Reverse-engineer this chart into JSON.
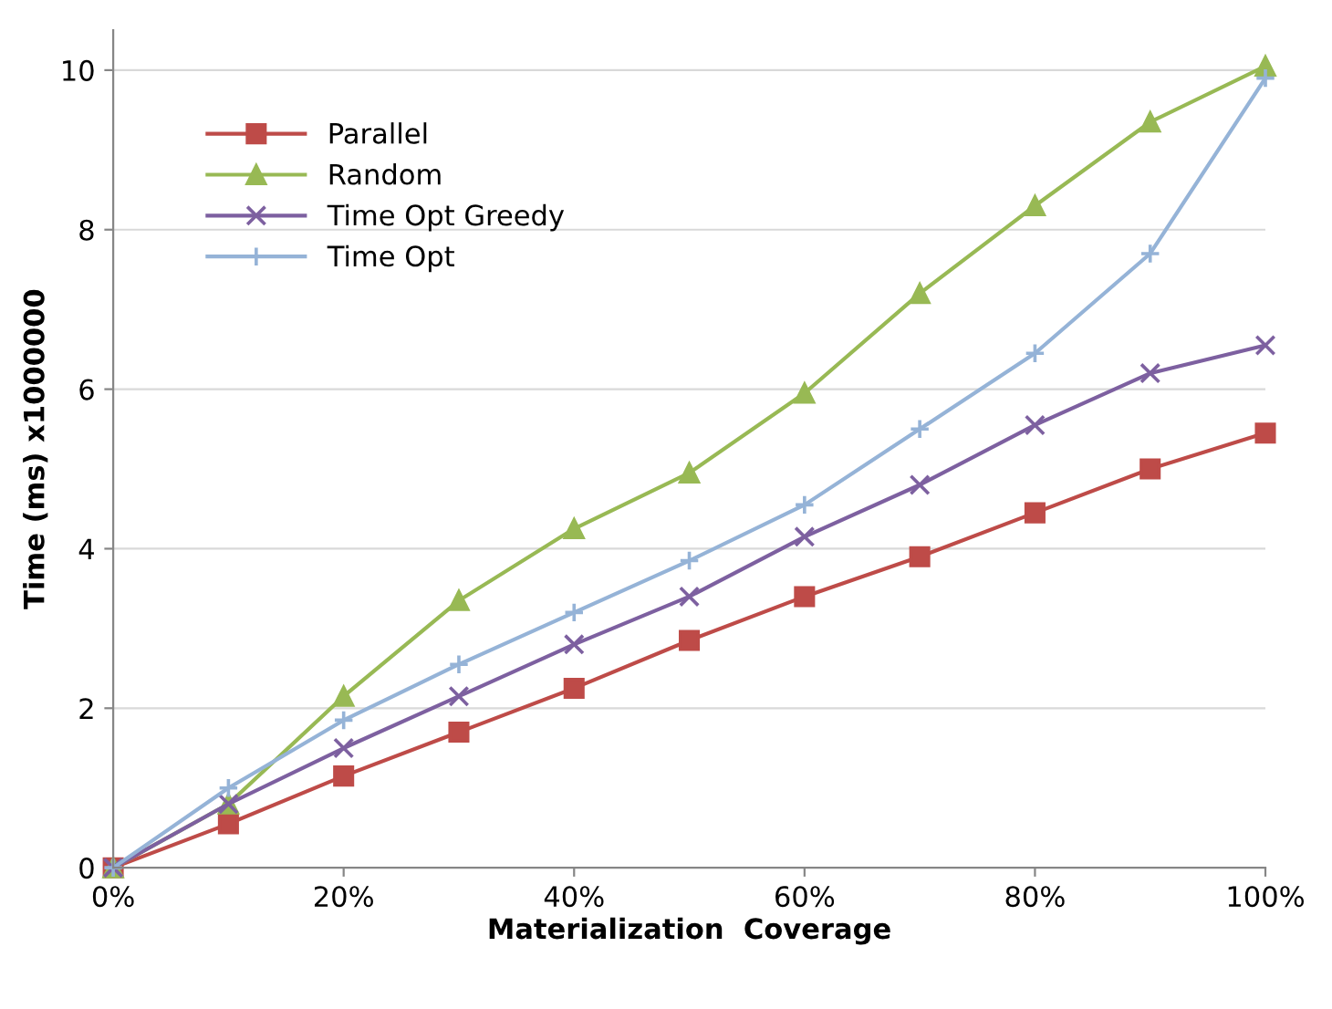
{
  "chart_data": {
    "type": "line",
    "xlabel": "Materialization  Coverage",
    "ylabel": "Time (ms) x1000000",
    "x": [
      0,
      10,
      20,
      30,
      40,
      50,
      60,
      70,
      80,
      90,
      100
    ],
    "series": [
      {
        "name": "Parallel",
        "color": "#be4b48",
        "marker": "square",
        "values": [
          0,
          0.55,
          1.15,
          1.7,
          2.25,
          2.85,
          3.4,
          3.9,
          4.45,
          5.0,
          5.45
        ]
      },
      {
        "name": "Random",
        "color": "#98b954",
        "marker": "triangle",
        "values": [
          0,
          0.8,
          2.15,
          3.35,
          4.25,
          4.95,
          5.95,
          7.2,
          8.3,
          9.35,
          10.05
        ]
      },
      {
        "name": "Time Opt Greedy",
        "color": "#7d60a0",
        "marker": "cross",
        "values": [
          0,
          0.8,
          1.5,
          2.15,
          2.8,
          3.4,
          4.15,
          4.8,
          5.55,
          6.2,
          6.55
        ]
      },
      {
        "name": "Time Opt",
        "color": "#95b3d7",
        "marker": "plus",
        "values": [
          0,
          1.0,
          1.85,
          2.55,
          3.2,
          3.85,
          4.55,
          5.5,
          6.45,
          7.7,
          9.9
        ]
      }
    ],
    "xlim": [
      0,
      100
    ],
    "xticks": [
      {
        "value": 0,
        "label": "0%"
      },
      {
        "value": 20,
        "label": "20%"
      },
      {
        "value": 40,
        "label": "40%"
      },
      {
        "value": 60,
        "label": "60%"
      },
      {
        "value": 80,
        "label": "80%"
      },
      {
        "value": 100,
        "label": "100%"
      }
    ],
    "ylim": [
      0,
      10.5
    ],
    "yticks": [
      0,
      2,
      4,
      6,
      8,
      10
    ],
    "grid": "y",
    "legend": "top left"
  }
}
